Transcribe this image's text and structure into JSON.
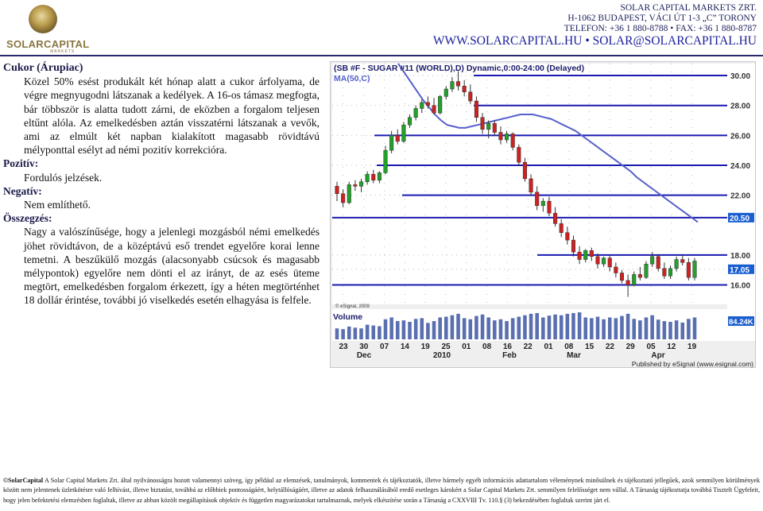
{
  "header": {
    "logo_text": "SOLARCAPITAL",
    "logo_subtext": "MARKETS",
    "company_name": "SOLAR CAPITAL MARKETS ZRT.",
    "address": "H-1062 BUDAPEST, VÁCI ÚT 1-3 „C” TORONY",
    "phone_fax": "TELEFON: +36 1 880-8788 • FAX: +36 1 880-8787",
    "web_email": "WWW.SOLARCAPITAL.HU • SOLAR@SOLARCAPITAL.HU"
  },
  "article": {
    "title": "Cukor (Árupiac)",
    "intro": "Közel 50% esést produkált két hónap alatt a cukor árfolyama, de végre megnyugodni látszanak a kedélyek. A 16-os támasz megfogta, bár többször is alatta tudott zárni, de eközben a forgalom teljesen eltűnt alóla. Az emelkedésben aztán visszatérni látszanak a vevők, ami az elmúlt két napban kialakított magasabb rövidtávú mélyponttal esélyt ad némi pozitív korrekcióra.",
    "positive_label": "Pozitív:",
    "positive_text": "Fordulós jelzések.",
    "negative_label": "Negatív:",
    "negative_text": "Nem említhető.",
    "summary_label": "Összegzés:",
    "summary_text": "Nagy a valószínűsége, hogy a jelenlegi mozgásból némi emelkedés jöhet rövidtávon, de a középtávú eső trendet egyelőre korai lenne temetni. A beszűkülő mozgás (alacsonyabb csúcsok és magasabb mélypontok) egyelőre nem dönti el az irányt, de az esés üteme megtört, emelkedésben forgalom érkezett, így a héten megtörténhet 18 dollár érintése, további jó viselkedés esetén elhagyása is felfele."
  },
  "chart_data": {
    "type": "candlestick",
    "title": "(SB #F - SUGAR #11 (WORLD),D) Dynamic,0:00-24:00 (Delayed)",
    "ma_label": "MA(50,C)",
    "copyright": "© eSignal, 2009",
    "volume_label": "Volume",
    "volume_value": "84.24K",
    "publisher": "Published by eSignal (www.esignal.com)",
    "y_ticks": [
      "30.00",
      "28.00",
      "26.00",
      "24.00",
      "22.00",
      "20.50",
      "18.00",
      "17.05",
      "16.00"
    ],
    "y_tick_values": [
      30,
      28,
      26,
      24,
      22,
      20.5,
      18,
      17.05,
      16
    ],
    "highlight_ticks": [
      "20.50",
      "17.05"
    ],
    "ylim": [
      14.7,
      30.8
    ],
    "x_tick_labels": [
      "23",
      "30",
      "07",
      "14",
      "19",
      "25",
      "01",
      "08",
      "16",
      "22",
      "01",
      "08",
      "15",
      "22",
      "29",
      "05",
      "12",
      "19"
    ],
    "month_labels": [
      "Dec",
      "2010",
      "Feb",
      "Mar",
      "Apr"
    ],
    "support_resistance_levels": [
      30.0,
      28.0,
      26.0,
      24.0,
      22.0,
      20.5,
      18.0,
      16.0
    ],
    "colors": {
      "up": "#22a02a",
      "down": "#cc2222",
      "ma": "#5560cc",
      "level": "#1a1ab0",
      "highlight": "#1a5fd0"
    },
    "candles": [
      [
        22.6,
        22.9,
        21.6,
        22.1
      ],
      [
        22.1,
        22.4,
        21.2,
        21.5
      ],
      [
        21.5,
        22.9,
        21.4,
        22.7
      ],
      [
        22.7,
        23.0,
        22.3,
        22.6
      ],
      [
        22.6,
        23.1,
        22.2,
        22.9
      ],
      [
        22.9,
        23.6,
        22.7,
        23.4
      ],
      [
        23.4,
        23.7,
        22.8,
        23.0
      ],
      [
        23.0,
        23.6,
        22.8,
        23.5
      ],
      [
        23.5,
        25.3,
        23.4,
        25.0
      ],
      [
        25.0,
        26.3,
        24.8,
        26.0
      ],
      [
        26.0,
        26.4,
        25.4,
        25.6
      ],
      [
        25.6,
        26.9,
        25.5,
        26.7
      ],
      [
        26.7,
        27.4,
        26.5,
        27.2
      ],
      [
        27.2,
        28.0,
        27.0,
        27.8
      ],
      [
        27.8,
        28.4,
        27.5,
        28.2
      ],
      [
        28.2,
        28.6,
        27.8,
        28.0
      ],
      [
        28.0,
        28.5,
        27.4,
        27.5
      ],
      [
        27.5,
        28.7,
        27.4,
        28.6
      ],
      [
        28.6,
        29.3,
        28.4,
        29.1
      ],
      [
        29.1,
        29.9,
        28.9,
        29.6
      ],
      [
        29.6,
        30.3,
        29.0,
        29.3
      ],
      [
        29.3,
        29.7,
        28.6,
        28.9
      ],
      [
        28.9,
        29.4,
        28.1,
        28.3
      ],
      [
        28.3,
        28.6,
        26.9,
        27.2
      ],
      [
        27.2,
        27.5,
        26.1,
        26.4
      ],
      [
        26.4,
        27.0,
        25.8,
        26.8
      ],
      [
        26.8,
        27.0,
        26.0,
        26.2
      ],
      [
        26.2,
        26.6,
        25.4,
        25.7
      ],
      [
        25.7,
        26.3,
        25.5,
        26.1
      ],
      [
        26.1,
        26.2,
        25.0,
        25.2
      ],
      [
        25.2,
        25.4,
        24.0,
        24.2
      ],
      [
        24.2,
        24.5,
        22.9,
        23.1
      ],
      [
        23.1,
        23.4,
        22.0,
        22.2
      ],
      [
        22.2,
        22.6,
        21.0,
        21.3
      ],
      [
        21.3,
        21.8,
        20.9,
        21.6
      ],
      [
        21.6,
        21.9,
        20.6,
        20.8
      ],
      [
        20.8,
        21.2,
        19.9,
        20.1
      ],
      [
        20.1,
        20.4,
        19.2,
        19.5
      ],
      [
        19.5,
        19.9,
        18.7,
        19.0
      ],
      [
        19.0,
        19.3,
        17.9,
        18.2
      ],
      [
        18.2,
        18.6,
        17.4,
        17.7
      ],
      [
        17.7,
        18.4,
        17.5,
        18.3
      ],
      [
        18.3,
        18.5,
        17.6,
        17.9
      ],
      [
        17.9,
        18.1,
        17.1,
        17.4
      ],
      [
        17.4,
        17.9,
        17.2,
        17.8
      ],
      [
        17.8,
        18.0,
        16.9,
        17.2
      ],
      [
        17.2,
        17.5,
        16.5,
        16.8
      ],
      [
        16.8,
        17.0,
        16.1,
        16.3
      ],
      [
        16.3,
        16.7,
        15.2,
        16.0
      ],
      [
        16.0,
        16.9,
        15.9,
        16.7
      ],
      [
        16.7,
        17.2,
        16.3,
        16.5
      ],
      [
        16.5,
        17.6,
        16.4,
        17.4
      ],
      [
        17.4,
        18.2,
        17.2,
        17.9
      ],
      [
        17.9,
        18.0,
        16.9,
        17.1
      ],
      [
        17.1,
        17.5,
        16.4,
        16.6
      ],
      [
        16.6,
        17.3,
        16.4,
        17.1
      ],
      [
        17.1,
        17.9,
        16.9,
        17.7
      ],
      [
        17.7,
        18.0,
        17.3,
        17.5
      ],
      [
        17.5,
        17.8,
        16.3,
        16.5
      ],
      [
        16.5,
        17.8,
        16.3,
        17.6
      ]
    ],
    "ma50": [
      30.8,
      30.2,
      29.6,
      29.0,
      28.4,
      27.9,
      27.4,
      27.0,
      26.7,
      26.6,
      26.5,
      26.5,
      26.6,
      26.7,
      26.8,
      26.9,
      27.0,
      27.1,
      27.2,
      27.3,
      27.4,
      27.4,
      27.4,
      27.3,
      27.2,
      27.1,
      26.9,
      26.7,
      26.5,
      26.3,
      26.0,
      25.7,
      25.4,
      25.1,
      24.8,
      24.5,
      24.2,
      23.9,
      23.6,
      23.2,
      22.9,
      22.6,
      22.3,
      22.0,
      21.7,
      21.4,
      21.1,
      20.8,
      20.5,
      20.2
    ],
    "volume": [
      30,
      28,
      35,
      32,
      30,
      40,
      38,
      36,
      55,
      60,
      50,
      52,
      48,
      56,
      58,
      45,
      50,
      60,
      62,
      66,
      70,
      58,
      55,
      64,
      68,
      60,
      52,
      55,
      50,
      58,
      62,
      66,
      70,
      72,
      60,
      65,
      68,
      66,
      70,
      72,
      74,
      60,
      58,
      62,
      55,
      60,
      58,
      64,
      70,
      56,
      52,
      60,
      66,
      54,
      50,
      48,
      52,
      46,
      56,
      60
    ]
  },
  "footer": {
    "brand": "©SolarCapital",
    "text": " A Solar Capital Markets Zrt. által nyilvánosságra hozott valamennyi szöveg, így például az elemzések, tanulmányok, kommentek és tájékoztatók, illetve bármely egyéb információs adattartalom véleménynek minősülnek és tájékoztató jellegűek, azok semmilyen körülmények között nem jelentenek üzletkötésre való felhívást, illetve biztatást, továbbá az előbbiek pontosságáért, helytállóságáért, illetve az adatok felhasználásából eredő esetleges károkért a Solar Capital Markets Zrt. semmilyen felelősséget nem vállal. A Társaság tájékoztatja továbbá Tisztelt Ügyfeleit, hogy jelen befektetési elemzésben foglaltak, illetve az abban közölt megállapítások objektív és független magyarázatokat tartalmaznak, melyek elkészítése során a Társaság a CXXVIII Tv. 110.§ (3) bekezdésében foglaltak szerint járt el."
  }
}
